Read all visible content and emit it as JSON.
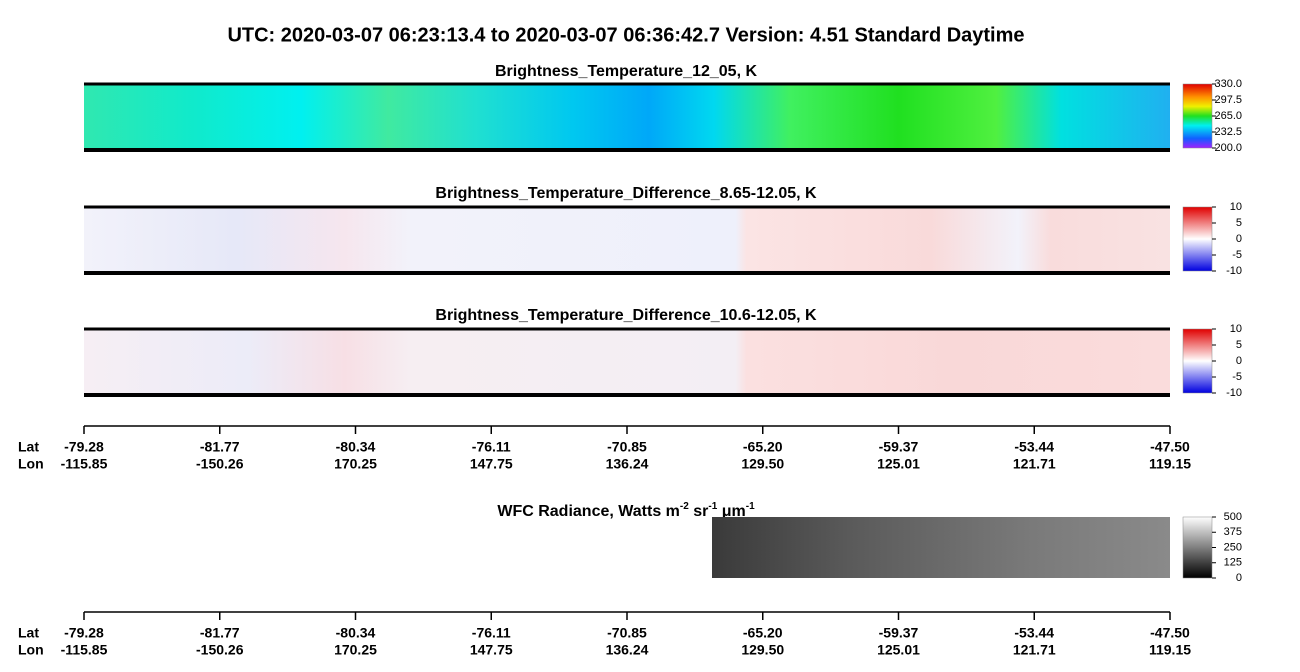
{
  "title": "UTC:  2020-03-07   06:23:13.4  to  2020-03-07   06:36:42.7    Version: 4.51  Standard Daytime",
  "panels": [
    {
      "title": "Brightness_Temperature_12_05, K",
      "colorbar_ticks": [
        "330.0",
        "297.5",
        "265.0",
        "232.5",
        "200.0"
      ]
    },
    {
      "title": "Brightness_Temperature_Difference_8.65-12.05, K",
      "colorbar_ticks": [
        "10",
        "5",
        "0",
        "-5",
        "-10"
      ]
    },
    {
      "title": "Brightness_Temperature_Difference_10.6-12.05, K",
      "colorbar_ticks": [
        "10",
        "5",
        "0",
        "-5",
        "-10"
      ]
    }
  ],
  "wfc": {
    "title_parts": [
      "WFC Radiance, Watts m",
      "-2",
      " sr",
      "-1",
      " μm",
      "-1"
    ],
    "colorbar_ticks": [
      "500",
      "375",
      "250",
      "125",
      "0"
    ]
  },
  "axes": [
    {
      "row_labels": [
        "Lat",
        "Lon"
      ],
      "lat": [
        "-79.28",
        "-81.77",
        "-80.34",
        "-76.11",
        "-70.85",
        "-65.20",
        "-59.37",
        "-53.44",
        "-47.50"
      ],
      "lon": [
        "-115.85",
        "-150.26",
        "170.25",
        "147.75",
        "136.24",
        "129.50",
        "125.01",
        "121.71",
        "119.15"
      ]
    },
    {
      "row_labels": [
        "Lat",
        "Lon"
      ],
      "lat": [
        "-79.28",
        "-81.77",
        "-80.34",
        "-76.11",
        "-70.85",
        "-65.20",
        "-59.37",
        "-53.44",
        "-47.50"
      ],
      "lon": [
        "-115.85",
        "-150.26",
        "170.25",
        "147.75",
        "136.24",
        "129.50",
        "125.01",
        "121.71",
        "119.15"
      ]
    }
  ]
}
